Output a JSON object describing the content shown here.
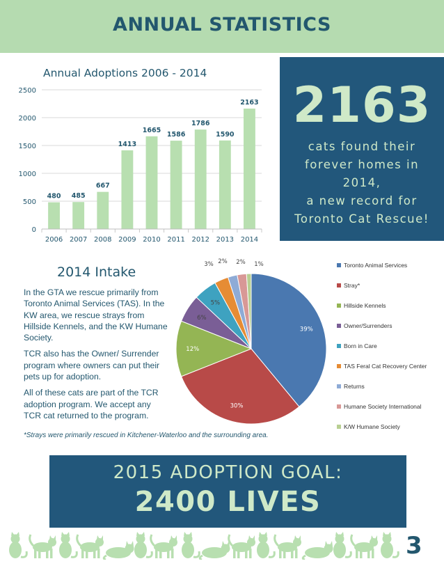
{
  "header": {
    "title": "ANNUAL STATISTICS"
  },
  "colors": {
    "header_bg": "#b5dbb0",
    "navy": "#23576e",
    "box_bg": "#22577b",
    "mint": "#cfe9c8",
    "bar": "#b8dfb0"
  },
  "highlight": {
    "number": "2163",
    "caption_lines": [
      "cats found their",
      "forever homes in",
      "2014,",
      "a new record for",
      "Toronto Cat Rescue!"
    ]
  },
  "chart_data": [
    {
      "type": "bar",
      "title": "Annual Adoptions 2006 - 2014",
      "categories": [
        "2006",
        "2007",
        "2008",
        "2009",
        "2010",
        "2011",
        "2012",
        "2013",
        "2014"
      ],
      "values": [
        480,
        485,
        667,
        1413,
        1665,
        1586,
        1786,
        1590,
        2163
      ],
      "value_labels": [
        "480",
        "485",
        "667",
        "1413",
        "1665",
        "1586",
        "1786",
        "1590",
        "2163"
      ],
      "y_ticks": [
        "0",
        "500",
        "1000",
        "1500",
        "2000",
        "2500"
      ],
      "ylim": [
        0,
        2500
      ],
      "grid": true,
      "color": "#b8dfb0"
    },
    {
      "type": "pie",
      "labels": [
        "Toronto Animal Services",
        "Stray*",
        "Hillside Kennels",
        "Owner/Surrenders",
        "Born in Care",
        "TAS Feral Cat Recovery Center",
        "Returns",
        "Humane Society International",
        "K/W Humane Society"
      ],
      "values": [
        39,
        30,
        12,
        6,
        5,
        3,
        2,
        2,
        1
      ],
      "value_labels": [
        "39%",
        "30%",
        "12%",
        "6%",
        "5%",
        "3%",
        "2%",
        "2%",
        "1%"
      ],
      "colors": [
        "#4a78b0",
        "#b84a48",
        "#94b554",
        "#7a5e96",
        "#3ea2c0",
        "#e68c34",
        "#8eabd6",
        "#d89896",
        "#b8cf92"
      ],
      "legend": "right"
    }
  ],
  "intake": {
    "title": "2014 Intake",
    "paragraphs": [
      [
        "In the GTA we rescue primarily from",
        "Toronto Animal Services (TAS). In the",
        "KW area, we rescue strays from",
        "Hillside Kennels, and the KW Humane",
        "Society."
      ],
      [
        "TCR also has the Owner/ Surrender",
        "program where owners can put their",
        "pets up for adoption."
      ],
      [
        "All of these cats are part of the TCR",
        "adoption program. We accept any",
        "TCR cat returned to the program."
      ]
    ],
    "footnote": "*Strays were primarily rescued in Kitchener-Waterloo and the surrounding area."
  },
  "goal": {
    "line1": "2015 ADOPTION GOAL:",
    "line2": "2400 LIVES"
  },
  "footer": {
    "page_number": "3",
    "decoration_icon": "cat-silhouettes-icon"
  }
}
